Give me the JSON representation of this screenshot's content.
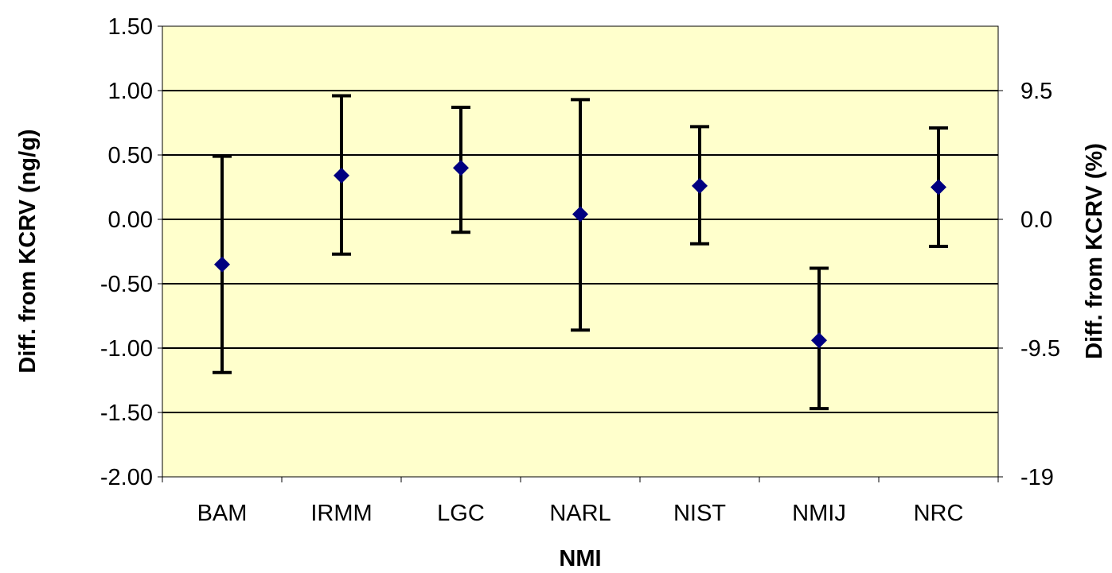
{
  "chart_data": {
    "type": "scatter",
    "xlabel": "NMI",
    "ylabel": "Diff. from KCRV (ng/g)",
    "y2label": "Diff. from KCRV (%)",
    "ylim": [
      -2.0,
      1.5
    ],
    "y2lim": [
      -19,
      14.25
    ],
    "yticks": [
      "1.50",
      "1.00",
      "0.50",
      "0.00",
      "-0.50",
      "-1.00",
      "-1.50",
      "-2.00"
    ],
    "y2ticks": [
      "9.5",
      "0.0",
      "-9.5",
      "-19"
    ],
    "y2tick_values": [
      9.5,
      0.0,
      -9.5,
      -19
    ],
    "grid": "horizontal",
    "legend": "none",
    "categories": [
      "BAM",
      "IRMM",
      "LGC",
      "NARL",
      "NIST",
      "NMIJ",
      "NRC"
    ],
    "series": [
      {
        "values": [
          -0.35,
          0.34,
          0.4,
          0.04,
          0.26,
          -0.94,
          0.25
        ],
        "lower": [
          -1.19,
          -0.27,
          -0.1,
          -0.86,
          -0.19,
          -1.47,
          -0.21
        ],
        "upper": [
          0.49,
          0.96,
          0.87,
          0.93,
          0.72,
          -0.38,
          0.71
        ]
      }
    ],
    "colors": {
      "plot_bg": "#FFFFCC",
      "marker": "#000080",
      "error_bar": "#000000",
      "grid": "#000000"
    }
  }
}
